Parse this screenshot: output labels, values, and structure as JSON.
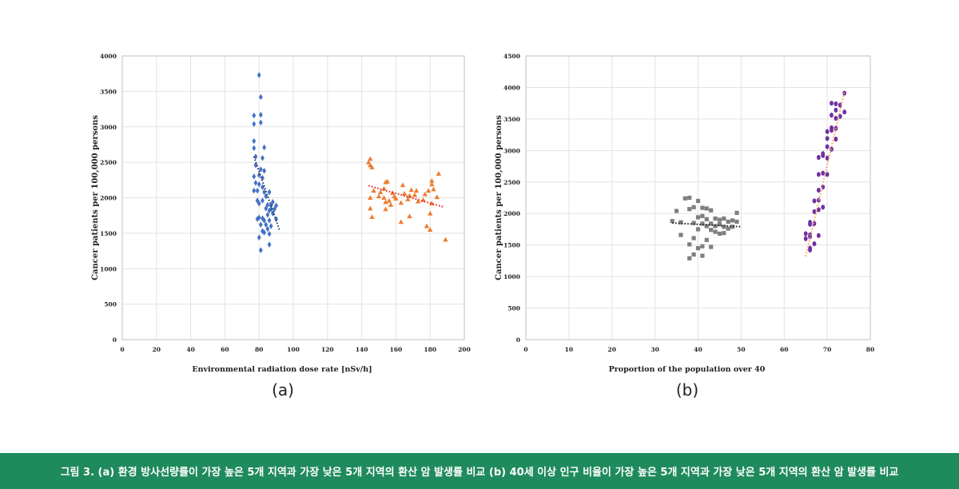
{
  "caption": "그림 3. (a) 환경 방사선량률이 가장 높은 5개 지역과 가장 낮은 5개 지역의 환산 암 발생률 비교 (b) 40세 이상 인구 비율이 가장 높은 5개 지역과 가장 낮은 5개 지역의 환산 암 발생률 비교",
  "panels": {
    "a": "(a)",
    "b": "(b)"
  },
  "chart_data": [
    {
      "type": "scatter",
      "xlabel": "Environmental radiation dose rate [nSv/h]",
      "ylabel": "Cancer patients per 100,000 persons",
      "xlim": [
        0,
        200
      ],
      "ylim": [
        0,
        4000
      ],
      "xticks": [
        "0",
        "20",
        "40",
        "60",
        "80",
        "100",
        "120",
        "140",
        "160",
        "180",
        "200"
      ],
      "yticks": [
        "0",
        "500",
        "1000",
        "1500",
        "2000",
        "2500",
        "3000",
        "3500",
        "4000"
      ],
      "grid": true,
      "series": [
        {
          "marker": "diamond",
          "color": "#4472c4",
          "points": [
            [
              80,
              3730
            ],
            [
              81,
              3420
            ],
            [
              77,
              3160
            ],
            [
              81,
              3170
            ],
            [
              77,
              3040
            ],
            [
              81,
              3060
            ],
            [
              77,
              2800
            ],
            [
              83,
              2710
            ],
            [
              77,
              2700
            ],
            [
              78,
              2580
            ],
            [
              82,
              2560
            ],
            [
              78,
              2460
            ],
            [
              81,
              2400
            ],
            [
              83,
              2380
            ],
            [
              77,
              2300
            ],
            [
              80,
              2320
            ],
            [
              82,
              2280
            ],
            [
              78,
              2210
            ],
            [
              80,
              2190
            ],
            [
              82,
              2150
            ],
            [
              77,
              2100
            ],
            [
              79,
              2100
            ],
            [
              83,
              2080
            ],
            [
              86,
              2080
            ],
            [
              84,
              2020
            ],
            [
              79,
              1960
            ],
            [
              82,
              1960
            ],
            [
              88,
              1940
            ],
            [
              80,
              1920
            ],
            [
              85,
              1900
            ],
            [
              87,
              1890
            ],
            [
              90,
              1890
            ],
            [
              84,
              1850
            ],
            [
              87,
              1840
            ],
            [
              89,
              1840
            ],
            [
              86,
              1820
            ],
            [
              88,
              1780
            ],
            [
              85,
              1760
            ],
            [
              80,
              1720
            ],
            [
              79,
              1700
            ],
            [
              82,
              1710
            ],
            [
              90,
              1700
            ],
            [
              83,
              1680
            ],
            [
              86,
              1680
            ],
            [
              81,
              1620
            ],
            [
              84,
              1620
            ],
            [
              87,
              1600
            ],
            [
              85,
              1560
            ],
            [
              82,
              1530
            ],
            [
              83,
              1510
            ],
            [
              86,
              1490
            ],
            [
              80,
              1440
            ],
            [
              86,
              1340
            ],
            [
              81,
              1260
            ]
          ],
          "trend": [
            [
              77,
              2580
            ],
            [
              92,
              1540
            ]
          ],
          "trend_color": "#1f3864"
        },
        {
          "marker": "triangle",
          "color": "#ed7d31",
          "points": [
            [
              145,
              2550
            ],
            [
              144,
              2500
            ],
            [
              145,
              2460
            ],
            [
              146,
              2430
            ],
            [
              185,
              2340
            ],
            [
              181,
              2240
            ],
            [
              155,
              2230
            ],
            [
              154,
              2220
            ],
            [
              181,
              2190
            ],
            [
              164,
              2180
            ],
            [
              153,
              2130
            ],
            [
              182,
              2120
            ],
            [
              169,
              2110
            ],
            [
              147,
              2100
            ],
            [
              172,
              2100
            ],
            [
              179,
              2100
            ],
            [
              151,
              2080
            ],
            [
              158,
              2070
            ],
            [
              165,
              2060
            ],
            [
              177,
              2050
            ],
            [
              171,
              2040
            ],
            [
              168,
              2030
            ],
            [
              150,
              2020
            ],
            [
              159,
              2020
            ],
            [
              184,
              2010
            ],
            [
              145,
              2000
            ],
            [
              153,
              2000
            ],
            [
              160,
              1990
            ],
            [
              167,
              1980
            ],
            [
              176,
              1970
            ],
            [
              156,
              1960
            ],
            [
              173,
              1950
            ],
            [
              154,
              1940
            ],
            [
              163,
              1930
            ],
            [
              181,
              1920
            ],
            [
              157,
              1900
            ],
            [
              145,
              1850
            ],
            [
              154,
              1840
            ],
            [
              180,
              1780
            ],
            [
              168,
              1740
            ],
            [
              146,
              1730
            ],
            [
              163,
              1660
            ],
            [
              178,
              1600
            ],
            [
              180,
              1550
            ],
            [
              189,
              1410
            ]
          ],
          "trend": [
            [
              144,
              2170
            ],
            [
              188,
              1870
            ]
          ],
          "trend_color": "#e52320"
        }
      ]
    },
    {
      "type": "scatter",
      "xlabel": "Proportion of the population over 40",
      "ylabel": "Cancer patients per 100,000 persons",
      "xlim": [
        0,
        80
      ],
      "ylim": [
        0,
        4500
      ],
      "xticks": [
        "0",
        "10",
        "20",
        "30",
        "40",
        "50",
        "60",
        "70",
        "80"
      ],
      "yticks": [
        "0",
        "500",
        "1000",
        "1500",
        "2000",
        "2500",
        "3000",
        "3500",
        "4000",
        "4500"
      ],
      "grid": true,
      "series": [
        {
          "marker": "square",
          "color": "#7f7f7f",
          "points": [
            [
              38,
              2250
            ],
            [
              37,
              2240
            ],
            [
              40,
              2200
            ],
            [
              39,
              2100
            ],
            [
              41,
              2090
            ],
            [
              42,
              2080
            ],
            [
              38,
              2070
            ],
            [
              43,
              2050
            ],
            [
              35,
              2040
            ],
            [
              49,
              2010
            ],
            [
              41,
              1960
            ],
            [
              40,
              1940
            ],
            [
              44,
              1920
            ],
            [
              46,
              1920
            ],
            [
              42,
              1910
            ],
            [
              45,
              1900
            ],
            [
              48,
              1890
            ],
            [
              34,
              1880
            ],
            [
              47,
              1870
            ],
            [
              49,
              1870
            ],
            [
              36,
              1860
            ],
            [
              39,
              1850
            ],
            [
              41,
              1840
            ],
            [
              43,
              1840
            ],
            [
              45,
              1830
            ],
            [
              42,
              1800
            ],
            [
              44,
              1800
            ],
            [
              46,
              1790
            ],
            [
              48,
              1790
            ],
            [
              47,
              1760
            ],
            [
              40,
              1750
            ],
            [
              43,
              1740
            ],
            [
              44,
              1710
            ],
            [
              45,
              1680
            ],
            [
              46,
              1690
            ],
            [
              36,
              1660
            ],
            [
              39,
              1610
            ],
            [
              42,
              1580
            ],
            [
              38,
              1510
            ],
            [
              41,
              1480
            ],
            [
              40,
              1450
            ],
            [
              43,
              1470
            ],
            [
              39,
              1350
            ],
            [
              41,
              1330
            ],
            [
              38,
              1290
            ]
          ],
          "trend": [
            [
              34,
              1850
            ],
            [
              50,
              1790
            ]
          ],
          "trend_color": "#262626"
        },
        {
          "marker": "circle",
          "color": "#7030a0",
          "points": [
            [
              74,
              3910
            ],
            [
              71,
              3750
            ],
            [
              72,
              3740
            ],
            [
              73,
              3720
            ],
            [
              72,
              3640
            ],
            [
              74,
              3610
            ],
            [
              73,
              3540
            ],
            [
              71,
              3560
            ],
            [
              72,
              3510
            ],
            [
              71,
              3360
            ],
            [
              72,
              3350
            ],
            [
              71,
              3320
            ],
            [
              70,
              3300
            ],
            [
              70,
              3190
            ],
            [
              72,
              3180
            ],
            [
              70,
              3060
            ],
            [
              71,
              3020
            ],
            [
              69,
              2950
            ],
            [
              69,
              2920
            ],
            [
              68,
              2890
            ],
            [
              70,
              2880
            ],
            [
              69,
              2640
            ],
            [
              70,
              2620
            ],
            [
              68,
              2620
            ],
            [
              69,
              2420
            ],
            [
              68,
              2370
            ],
            [
              68,
              2210
            ],
            [
              67,
              2200
            ],
            [
              69,
              2100
            ],
            [
              68,
              2060
            ],
            [
              67,
              2030
            ],
            [
              66,
              1860
            ],
            [
              67,
              1840
            ],
            [
              66,
              1830
            ],
            [
              65,
              1680
            ],
            [
              66,
              1660
            ],
            [
              68,
              1650
            ],
            [
              66,
              1630
            ],
            [
              65,
              1600
            ],
            [
              67,
              1520
            ],
            [
              66,
              1450
            ],
            [
              66,
              1420
            ]
          ],
          "trend": [
            [
              65,
              1320
            ],
            [
              74,
              3930
            ]
          ],
          "trend_color": "#f4a261"
        }
      ]
    }
  ]
}
